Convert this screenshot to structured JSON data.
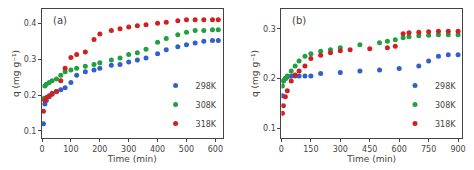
{
  "chart_data": [
    {
      "type": "scatter",
      "title": "(a)",
      "xlabel": "Time (min)",
      "ylabel": "q (mg g⁻¹)",
      "xlim": [
        0,
        625
      ],
      "ylim": [
        0.08,
        0.44
      ],
      "xticks": [
        0,
        100,
        200,
        300,
        400,
        500,
        600
      ],
      "yticks": [
        0.1,
        0.2,
        0.3,
        0.4
      ],
      "grid": false,
      "legend": "lower right",
      "series": [
        {
          "name": "298K",
          "color": "#3060c8",
          "x": [
            5,
            10,
            15,
            25,
            35,
            50,
            65,
            80,
            100,
            120,
            150,
            180,
            200,
            240,
            270,
            300,
            330,
            360,
            400,
            430,
            470,
            500,
            530,
            560,
            590,
            610
          ],
          "values": [
            0.12,
            0.175,
            0.185,
            0.195,
            0.205,
            0.21,
            0.215,
            0.22,
            0.235,
            0.255,
            0.265,
            0.27,
            0.275,
            0.283,
            0.285,
            0.292,
            0.298,
            0.303,
            0.315,
            0.326,
            0.335,
            0.34,
            0.345,
            0.35,
            0.352,
            0.352
          ]
        },
        {
          "name": "308K",
          "color": "#20a040",
          "x": [
            5,
            10,
            15,
            25,
            35,
            50,
            65,
            80,
            100,
            120,
            150,
            180,
            200,
            240,
            270,
            300,
            330,
            360,
            400,
            430,
            470,
            500,
            530,
            560,
            590,
            610
          ],
          "values": [
            0.19,
            0.225,
            0.23,
            0.235,
            0.24,
            0.245,
            0.255,
            0.265,
            0.27,
            0.275,
            0.28,
            0.285,
            0.29,
            0.298,
            0.303,
            0.313,
            0.318,
            0.328,
            0.347,
            0.358,
            0.368,
            0.375,
            0.38,
            0.38,
            0.382,
            0.382
          ]
        },
        {
          "name": "318K",
          "color": "#d02020",
          "x": [
            5,
            10,
            15,
            25,
            35,
            50,
            65,
            80,
            100,
            120,
            150,
            180,
            200,
            240,
            270,
            300,
            330,
            360,
            400,
            430,
            470,
            500,
            530,
            560,
            590,
            610
          ],
          "values": [
            0.155,
            0.185,
            0.193,
            0.198,
            0.202,
            0.21,
            0.24,
            0.275,
            0.305,
            0.313,
            0.32,
            0.355,
            0.37,
            0.38,
            0.385,
            0.39,
            0.393,
            0.396,
            0.4,
            0.403,
            0.407,
            0.41,
            0.41,
            0.41,
            0.41,
            0.41
          ]
        }
      ]
    },
    {
      "type": "scatter",
      "title": "(b)",
      "xlabel": "Time (min)",
      "ylabel": "q (mg g⁻¹)",
      "xlim": [
        0,
        920
      ],
      "ylim": [
        0.08,
        0.34
      ],
      "xticks": [
        0,
        150,
        300,
        450,
        600,
        750,
        900
      ],
      "yticks": [
        0.1,
        0.2,
        0.3
      ],
      "grid": false,
      "legend": "lower right",
      "series": [
        {
          "name": "298K",
          "color": "#3060c8",
          "x": [
            5,
            10,
            20,
            30,
            50,
            70,
            90,
            120,
            150,
            200,
            300,
            400,
            500,
            600,
            700,
            750,
            800,
            850,
            900
          ],
          "values": [
            0.165,
            0.195,
            0.2,
            0.203,
            0.205,
            0.205,
            0.205,
            0.205,
            0.205,
            0.21,
            0.212,
            0.215,
            0.217,
            0.22,
            0.225,
            0.235,
            0.245,
            0.248,
            0.248
          ]
        },
        {
          "name": "308K",
          "color": "#20a040",
          "x": [
            5,
            10,
            20,
            30,
            50,
            70,
            90,
            120,
            150,
            200,
            250,
            300,
            400,
            500,
            540,
            580,
            620,
            650,
            700,
            750,
            800,
            850,
            900
          ],
          "values": [
            0.185,
            0.195,
            0.2,
            0.205,
            0.215,
            0.225,
            0.235,
            0.245,
            0.25,
            0.255,
            0.258,
            0.262,
            0.268,
            0.272,
            0.275,
            0.278,
            0.282,
            0.284,
            0.286,
            0.287,
            0.288,
            0.288,
            0.288
          ]
        },
        {
          "name": "318K",
          "color": "#d02020",
          "x": [
            5,
            10,
            20,
            30,
            50,
            70,
            90,
            120,
            150,
            200,
            250,
            300,
            350,
            450,
            540,
            580,
            620,
            650,
            700,
            750,
            800,
            850,
            900
          ],
          "values": [
            0.13,
            0.145,
            0.163,
            0.175,
            0.195,
            0.207,
            0.215,
            0.225,
            0.24,
            0.247,
            0.252,
            0.256,
            0.258,
            0.26,
            0.262,
            0.265,
            0.29,
            0.292,
            0.293,
            0.294,
            0.295,
            0.295,
            0.295
          ]
        }
      ]
    }
  ]
}
